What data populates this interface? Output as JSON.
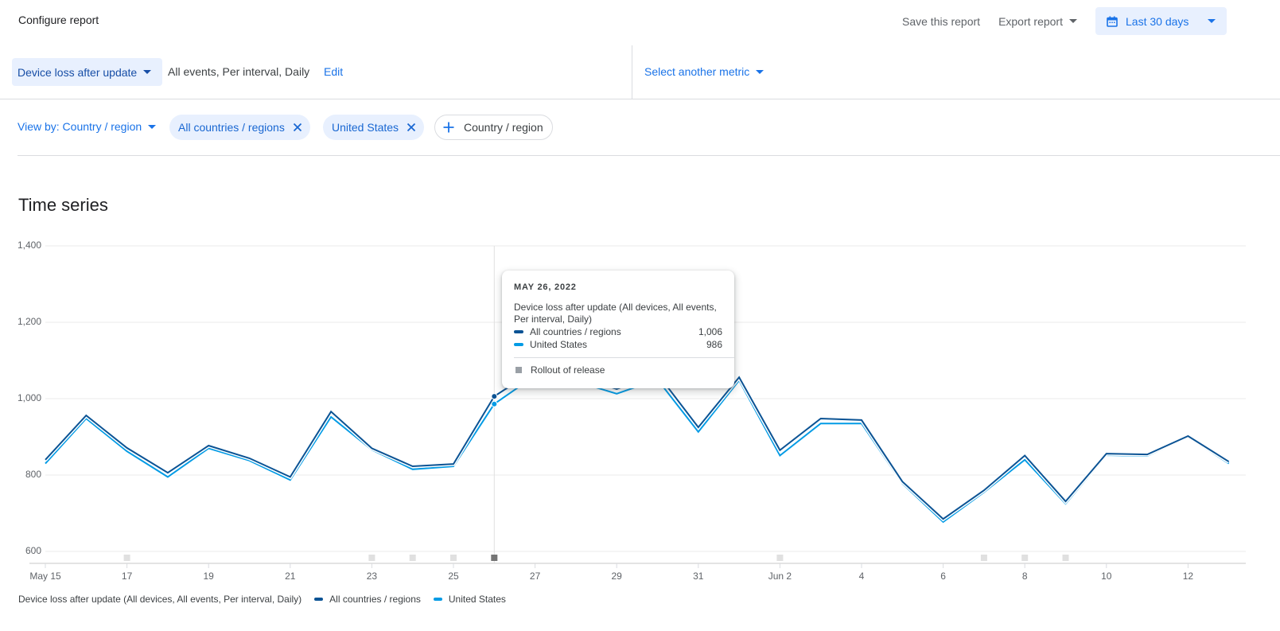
{
  "header": {
    "title": "Configure report",
    "save_label": "Save this report",
    "export_label": "Export report",
    "date_range": "Last 30 days"
  },
  "metric": {
    "selected": "Device loss after update",
    "description": "All events, Per interval, Daily",
    "edit_label": "Edit",
    "select_another": "Select another metric"
  },
  "filters": {
    "view_by": "View by: Country / region",
    "chips": [
      "All countries / regions",
      "United States"
    ],
    "add_label": "Country / region"
  },
  "section": {
    "title": "Time series"
  },
  "tooltip": {
    "date": "MAY 26, 2022",
    "description": "Device loss after update (All devices, All events, Per interval, Daily)",
    "rows": [
      {
        "label": "All countries / regions",
        "value": "1,006"
      },
      {
        "label": "United States",
        "value": "986"
      }
    ],
    "annotation": "Rollout of release"
  },
  "legend": {
    "title": "Device loss after update (All devices, All events, Per interval, Daily)",
    "items": [
      "All countries / regions",
      "United States"
    ]
  },
  "colors": {
    "series_all": "#0b5394",
    "series_us": "#039be5",
    "accent": "#1a73e8",
    "chip_bg": "#e8f0fe",
    "annotation_marker": "#e0e0e0",
    "annotation_active": "#757575"
  },
  "chart_data": {
    "type": "line",
    "title": "Time series",
    "xlabel": "",
    "ylabel": "",
    "ylim": [
      600,
      1400
    ],
    "yticks": [
      "1,400",
      "1,200",
      "1,000",
      "800",
      "600"
    ],
    "xtick_labels": [
      "May 15",
      "17",
      "19",
      "21",
      "23",
      "25",
      "27",
      "29",
      "31",
      "Jun 2",
      "4",
      "6",
      "8",
      "10",
      "12"
    ],
    "x": [
      "May 15",
      "May 16",
      "May 17",
      "May 18",
      "May 19",
      "May 20",
      "May 21",
      "May 22",
      "May 23",
      "May 24",
      "May 25",
      "May 26",
      "May 27",
      "May 28",
      "May 29",
      "May 30",
      "May 31",
      "Jun 1",
      "Jun 2",
      "Jun 3",
      "Jun 4",
      "Jun 5",
      "Jun 6",
      "Jun 7",
      "Jun 8",
      "Jun 9",
      "Jun 10",
      "Jun 11",
      "Jun 12",
      "Jun 13"
    ],
    "series": [
      {
        "name": "All countries / regions",
        "values": [
          840,
          956,
          871,
          806,
          877,
          844,
          795,
          966,
          870,
          823,
          829,
          1006,
          1075,
          1060,
          1025,
          1065,
          925,
          1056,
          865,
          948,
          944,
          783,
          685,
          760,
          851,
          731,
          856,
          854,
          902,
          835
        ]
      },
      {
        "name": "United States",
        "values": [
          830,
          948,
          862,
          795,
          870,
          838,
          787,
          952,
          866,
          815,
          823,
          986,
          1060,
          1045,
          1013,
          1050,
          913,
          1048,
          851,
          935,
          935,
          778,
          677,
          755,
          840,
          725,
          852,
          850,
          900,
          830
        ]
      }
    ],
    "annotations": {
      "name": "Rollout of release",
      "dates": [
        "May 17",
        "May 23",
        "May 24",
        "May 25",
        "May 26",
        "Jun 2",
        "Jun 7",
        "Jun 8",
        "Jun 9"
      ],
      "active": "May 26"
    },
    "hover_date": "May 26",
    "grid": true,
    "legend_position": "bottom"
  }
}
